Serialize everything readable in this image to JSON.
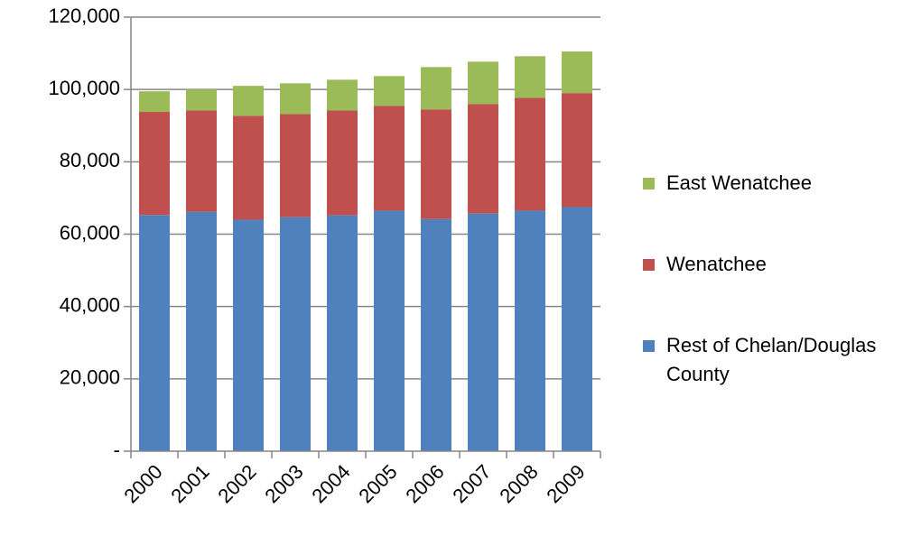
{
  "chart_data": {
    "type": "stacked-bar",
    "categories": [
      "2000",
      "2001",
      "2002",
      "2003",
      "2004",
      "2005",
      "2006",
      "2007",
      "2008",
      "2009"
    ],
    "series": [
      {
        "name": "Rest of Chelan/Douglas County",
        "color": "#4f81bd",
        "values": [
          65300,
          66200,
          64000,
          64700,
          65200,
          66500,
          64200,
          65700,
          66500,
          67500
        ]
      },
      {
        "name": "Wenatchee",
        "color": "#c0504d",
        "values": [
          28500,
          28000,
          28700,
          28500,
          29000,
          29000,
          30300,
          30300,
          31200,
          31500
        ]
      },
      {
        "name": "East Wenatchee",
        "color": "#9bbb59",
        "values": [
          5700,
          5800,
          8300,
          8500,
          8500,
          8200,
          11700,
          11700,
          11500,
          11500
        ]
      }
    ],
    "ylim": [
      0,
      120000
    ],
    "yticks": [
      {
        "value": 0,
        "label": "-"
      },
      {
        "value": 20000,
        "label": "20,000"
      },
      {
        "value": 40000,
        "label": "40,000"
      },
      {
        "value": 60000,
        "label": "60,000"
      },
      {
        "value": 80000,
        "label": "80,000"
      },
      {
        "value": 100000,
        "label": "100,000"
      },
      {
        "value": 120000,
        "label": "120,000"
      }
    ],
    "grid": true
  }
}
